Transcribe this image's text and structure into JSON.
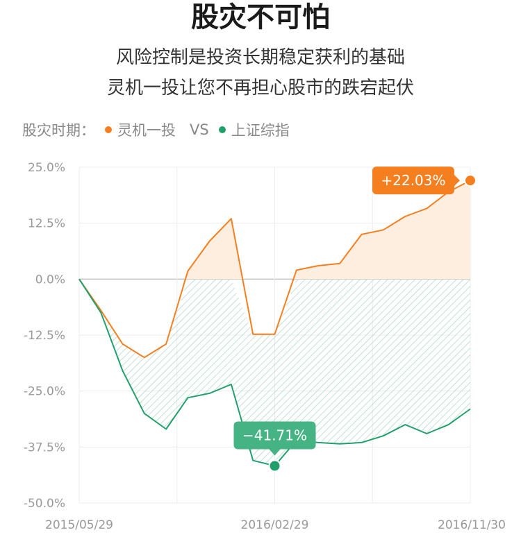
{
  "header": {
    "title": "股灾不可怕",
    "subtitle_line1": "风险控制是投资长期稳定获利的基础",
    "subtitle_line2": "灵机一投让您不再担心股市的跌宕起伏"
  },
  "legend": {
    "prefix": "股灾时期：",
    "vs": "VS"
  },
  "colors": {
    "orange": "#f57e1f",
    "green": "#22a06b",
    "orange_fill": "#fdeee0",
    "green_hatch": "#9fd3bd",
    "bubble_green": "#45b383",
    "grid": "#ececec",
    "zero_line": "#bbbbbb"
  },
  "chart_data": {
    "type": "line",
    "ylim": [
      -50,
      25
    ],
    "yticks": [
      "25.0%",
      "12.5%",
      "0.0%",
      "-12.5%",
      "-25.0%",
      "-37.5%",
      "-50.0%"
    ],
    "xtick_labels": [
      "2015/05/29",
      "2016/02/29",
      "2016/11/30"
    ],
    "grid": true,
    "series": [
      {
        "name": "灵机一投",
        "color": "#f57e1f",
        "values": [
          0,
          -7,
          -14.5,
          -17.5,
          -14.5,
          1.8,
          8.5,
          13.5,
          -12.3,
          -12.3,
          2,
          3,
          3.5,
          10,
          11,
          14,
          15.8,
          19.5,
          22.03
        ]
      },
      {
        "name": "上证综指",
        "color": "#22a06b",
        "values": [
          0,
          -7.5,
          -20.5,
          -30,
          -33.5,
          -26.5,
          -25.5,
          -23.5,
          -40.5,
          -41.71,
          -36,
          -36.5,
          -36.8,
          -36.5,
          -35,
          -32.5,
          -34.5,
          -32.5,
          -29
        ]
      }
    ],
    "annotations": [
      {
        "text": "+22.03%",
        "series": 0,
        "index": 18,
        "value": 22.03
      },
      {
        "text": "−41.71%",
        "series": 1,
        "index": 9,
        "value": -41.71
      }
    ]
  }
}
